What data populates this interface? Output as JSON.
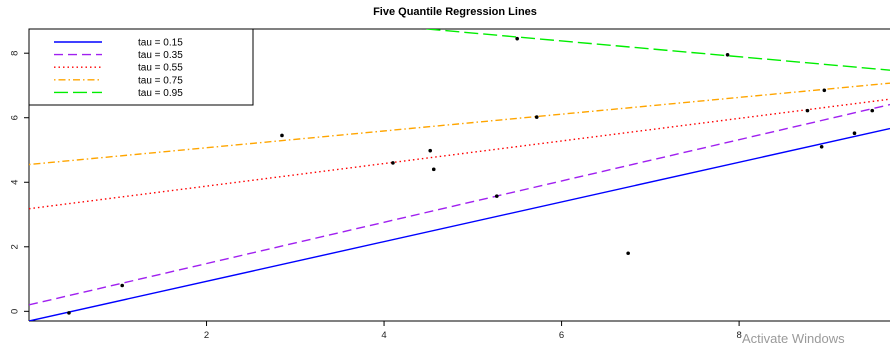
{
  "chart_data": {
    "type": "scatter",
    "title": "Five Quantile Regression Lines",
    "xlabel": "",
    "ylabel": "",
    "xlim": [
      0.0,
      9.7
    ],
    "ylim": [
      -0.3,
      8.75
    ],
    "x_ticks": [
      2,
      4,
      6,
      8
    ],
    "y_ticks": [
      0,
      2,
      4,
      6,
      8
    ],
    "grid": false,
    "legend_position": "top-left",
    "points": [
      {
        "x": 0.45,
        "y": -0.05
      },
      {
        "x": 1.05,
        "y": 0.8
      },
      {
        "x": 2.85,
        "y": 5.45
      },
      {
        "x": 4.1,
        "y": 4.6
      },
      {
        "x": 4.52,
        "y": 4.98
      },
      {
        "x": 4.56,
        "y": 4.4
      },
      {
        "x": 5.27,
        "y": 3.57
      },
      {
        "x": 5.5,
        "y": 8.45
      },
      {
        "x": 5.72,
        "y": 6.02
      },
      {
        "x": 6.75,
        "y": 1.8
      },
      {
        "x": 7.87,
        "y": 7.95
      },
      {
        "x": 8.77,
        "y": 6.22
      },
      {
        "x": 8.93,
        "y": 5.1
      },
      {
        "x": 8.96,
        "y": 6.85
      },
      {
        "x": 9.3,
        "y": 5.52
      },
      {
        "x": 9.5,
        "y": 6.22
      }
    ],
    "series": [
      {
        "name": "tau = 0.15",
        "color": "#0000ff",
        "dash": "solid",
        "intercept": -0.3,
        "slope": 0.615
      },
      {
        "name": "tau = 0.35",
        "color": "#a020f0",
        "dash": "dashed",
        "intercept": 0.2,
        "slope": 0.64
      },
      {
        "name": "tau = 0.55",
        "color": "#ff0000",
        "dash": "dotted",
        "intercept": 3.18,
        "slope": 0.35
      },
      {
        "name": "tau = 0.75",
        "color": "#ffa500",
        "dash": "dotdash",
        "intercept": 4.55,
        "slope": 0.26
      },
      {
        "name": "tau = 0.95",
        "color": "#00ee00",
        "dash": "longdash",
        "intercept": 9.85,
        "slope": -0.245
      }
    ]
  },
  "watermark": "Activate Windows"
}
